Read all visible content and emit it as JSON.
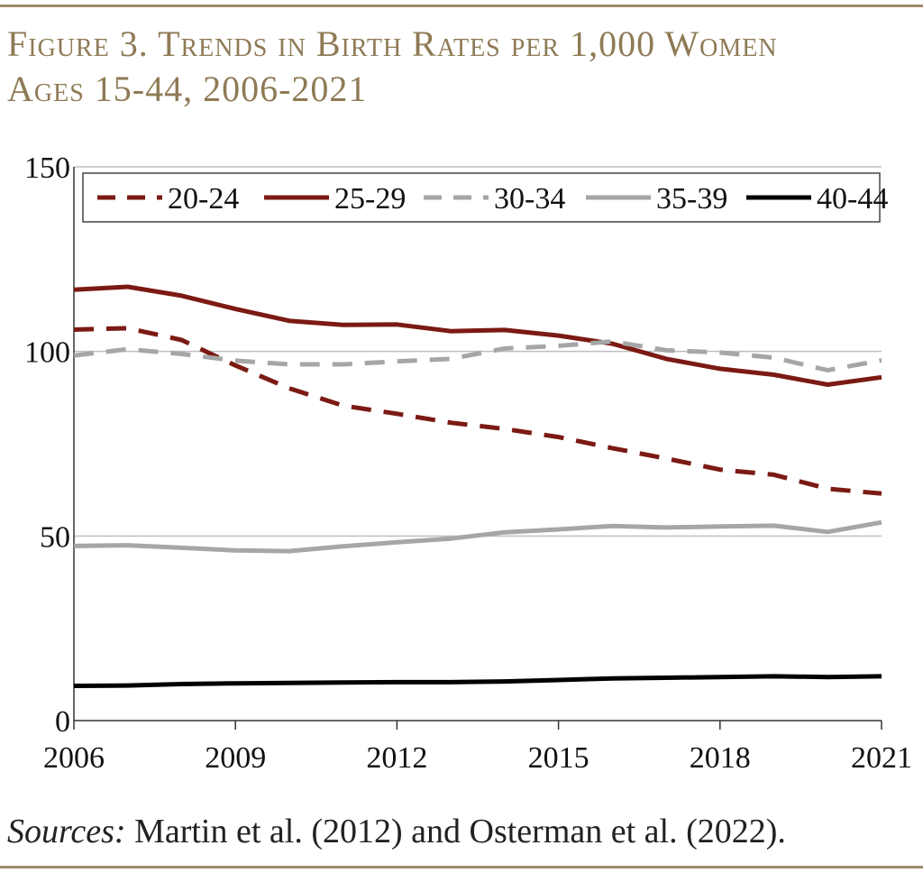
{
  "title_lines": [
    "Figure 3. Trends in Birth Rates per 1,000 Women",
    "Ages 15-44, 2006-2021"
  ],
  "source": {
    "label": "Sources:",
    "text": " Martin et al. (2012) and Osterman et al. (2022)."
  },
  "chart_data": {
    "type": "line",
    "title": "Figure 3. Trends in Birth Rates per 1,000 Women Ages 15-44, 2006-2021",
    "xlabel": "",
    "ylabel": "",
    "x": [
      2006,
      2007,
      2008,
      2009,
      2010,
      2011,
      2012,
      2013,
      2014,
      2015,
      2016,
      2017,
      2018,
      2019,
      2020,
      2021
    ],
    "xticks": [
      "2006",
      "2009",
      "2012",
      "2015",
      "2018",
      "2021"
    ],
    "yticks": [
      "0",
      "50",
      "100",
      "150"
    ],
    "ylim": [
      0,
      150
    ],
    "grid": "horizontal",
    "legend_position": "top",
    "series": [
      {
        "name": "20-24",
        "color": "#7b1a13",
        "dash": "dashed",
        "values": [
          105.9,
          106.3,
          103.1,
          96.2,
          90.0,
          85.3,
          83.1,
          80.7,
          79.0,
          76.8,
          73.8,
          71.0,
          68.0,
          66.6,
          62.8,
          61.5
        ]
      },
      {
        "name": "25-29",
        "color": "#7b1a13",
        "dash": "solid",
        "values": [
          116.7,
          117.5,
          115.1,
          111.5,
          108.3,
          107.2,
          107.3,
          105.5,
          105.8,
          104.3,
          102.1,
          98.0,
          95.3,
          93.7,
          91.0,
          93.0
        ]
      },
      {
        "name": "30-34",
        "color": "#a6a6a6",
        "dash": "dashed",
        "values": [
          98.9,
          100.6,
          99.3,
          97.5,
          96.5,
          96.5,
          97.3,
          98.0,
          100.8,
          101.5,
          102.7,
          100.3,
          99.7,
          98.3,
          94.9,
          97.6
        ]
      },
      {
        "name": "35-39",
        "color": "#a6a6a6",
        "dash": "solid",
        "values": [
          47.3,
          47.5,
          46.8,
          46.1,
          45.9,
          47.2,
          48.3,
          49.3,
          51.0,
          51.8,
          52.7,
          52.3,
          52.6,
          52.8,
          51.1,
          53.7
        ]
      },
      {
        "name": "40-44",
        "color": "#000000",
        "dash": "solid",
        "values": [
          9.4,
          9.5,
          9.9,
          10.1,
          10.2,
          10.3,
          10.4,
          10.4,
          10.6,
          11.0,
          11.4,
          11.6,
          11.8,
          12.0,
          11.8,
          12.0
        ]
      }
    ]
  }
}
